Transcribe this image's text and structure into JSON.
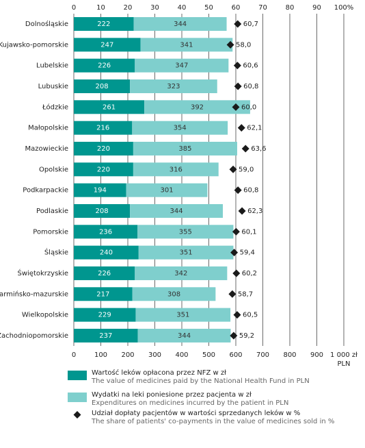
{
  "chart_data": {
    "type": "stacked_bar_horizontal",
    "categories": [
      "Dolnośląskie",
      "Kujawsko-pomorskie",
      "Lubelskie",
      "Lubuskie",
      "Łódzkie",
      "Małopolskie",
      "Mazowieckie",
      "Opolskie",
      "Podkarpackie",
      "Podlaskie",
      "Pomorskie",
      "Śląskie",
      "Świętokrzyskie",
      "Warmińsko-mazurskie",
      "Wielkopolskie",
      "Zachodniopomorskie"
    ],
    "series": [
      {
        "name": "Wartość leków opłacona przez NFZ w zł",
        "name_en": "The value of medicines paid by the National Health Fund in PLN",
        "color": "#00968f",
        "values": [
          222,
          247,
          226,
          208,
          261,
          216,
          220,
          220,
          194,
          208,
          236,
          240,
          226,
          217,
          229,
          237
        ]
      },
      {
        "name": "Wydatki na leki poniesione przez pacjenta w zł",
        "name_en": "Expenditures on medicines incurred by the patient in PLN",
        "color": "#7fcfcd",
        "values": [
          344,
          341,
          347,
          323,
          392,
          354,
          385,
          316,
          301,
          344,
          355,
          351,
          342,
          308,
          351,
          344
        ]
      },
      {
        "name": "Udział dopłaty pacjentów w wartości sprzedanych leków w %",
        "name_en": "The share of patients' co-payments in the value of medicines sold in %",
        "color": "#1a1a1a",
        "axis": "x2",
        "values": [
          60.7,
          58.0,
          60.6,
          60.8,
          60.0,
          62.1,
          63.6,
          59.0,
          60.8,
          62.3,
          60.1,
          59.4,
          60.2,
          58.7,
          60.5,
          59.2
        ],
        "value_labels": [
          "60,7",
          "58,0",
          "60,6",
          "60,8",
          "60,0",
          "62,1",
          "63,6",
          "59,0",
          "60,8",
          "62,3",
          "60,1",
          "59,4",
          "60,2",
          "58,7",
          "60,5",
          "59,2"
        ]
      }
    ],
    "xlim": [
      0,
      1000
    ],
    "xticks": [
      0,
      100,
      200,
      300,
      400,
      500,
      600,
      700,
      800,
      900,
      {
        "value": 1000,
        "label": "1 000 zł"
      }
    ],
    "x_unit": "PLN",
    "x2lim": [
      0,
      100
    ],
    "x2ticks": [
      0,
      10,
      20,
      30,
      40,
      50,
      60,
      70,
      80,
      90,
      {
        "value": 100,
        "label": "100%"
      }
    ],
    "grid": true
  }
}
